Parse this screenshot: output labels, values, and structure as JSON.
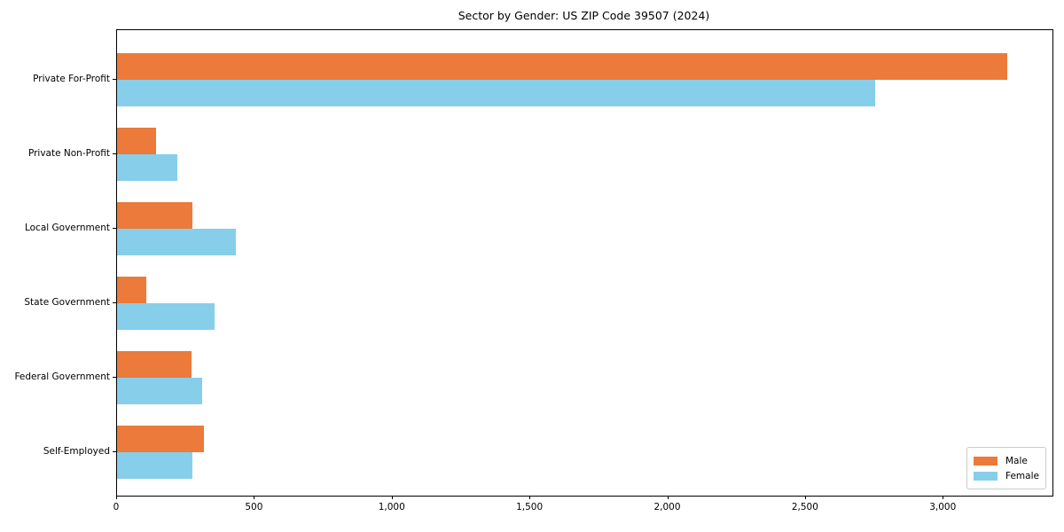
{
  "title": "Sector by Gender: US ZIP Code 39507 (2024)",
  "colors": {
    "male": "#EB7A3B",
    "female": "#87CEEB",
    "spine": "#000000",
    "legend_border": "#CCCCCC",
    "background": "#FFFFFF"
  },
  "legend": {
    "items": [
      {
        "label": "Male",
        "color_key": "male"
      },
      {
        "label": "Female",
        "color_key": "female"
      }
    ],
    "position": "lower right"
  },
  "chart_data": {
    "type": "bar",
    "orientation": "horizontal",
    "title": "Sector by Gender: US ZIP Code 39507 (2024)",
    "xlabel": "",
    "ylabel": "",
    "categories": [
      "Private For-Profit",
      "Private Non-Profit",
      "Local Government",
      "State Government",
      "Federal Government",
      "Self-Employed"
    ],
    "series": [
      {
        "name": "Male",
        "color": "#EB7A3B",
        "values": [
          3230,
          140,
          273,
          105,
          270,
          315
        ]
      },
      {
        "name": "Female",
        "color": "#87CEEB",
        "values": [
          2750,
          220,
          430,
          355,
          310,
          275
        ]
      }
    ],
    "xlim": [
      0,
      3395
    ],
    "xticks": {
      "values": [
        0,
        500,
        1000,
        1500,
        2000,
        2500,
        3000
      ],
      "labels": [
        "0",
        "500",
        "1,000",
        "1,500",
        "2,000",
        "2,500",
        "3,000"
      ]
    },
    "grid": false,
    "legend_position": "lower right"
  }
}
